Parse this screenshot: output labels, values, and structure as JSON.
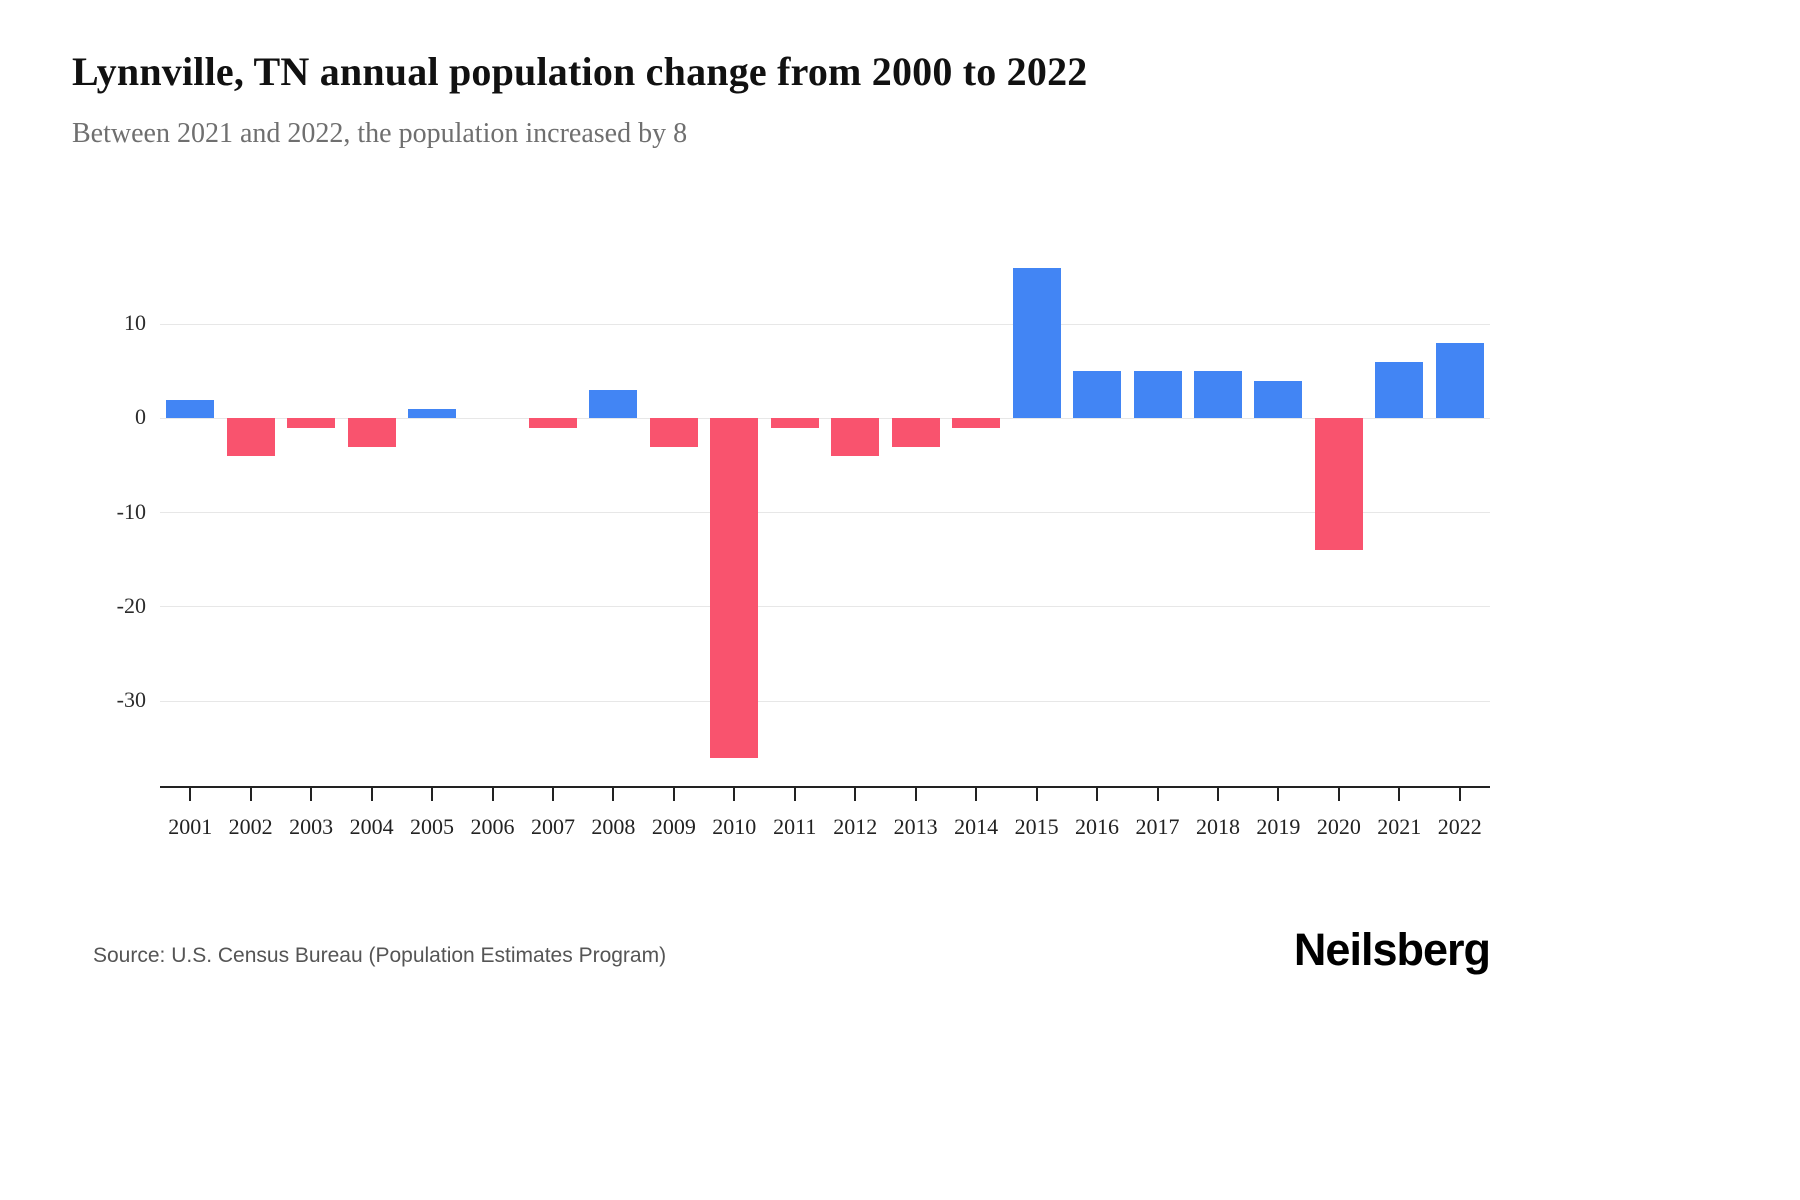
{
  "header": {
    "title": "Lynnville, TN annual population change from 2000 to 2022",
    "subtitle": "Between 2021 and 2022, the population increased by 8"
  },
  "chart_data": {
    "type": "bar",
    "title": "Lynnville, TN annual population change from 2000 to 2022",
    "categories": [
      "2001",
      "2002",
      "2003",
      "2004",
      "2005",
      "2006",
      "2007",
      "2008",
      "2009",
      "2010",
      "2011",
      "2012",
      "2013",
      "2014",
      "2015",
      "2016",
      "2017",
      "2018",
      "2019",
      "2020",
      "2021",
      "2022"
    ],
    "values": [
      2,
      -4,
      -1,
      -3,
      1,
      0,
      -1,
      3,
      -3,
      -36,
      -1,
      -4,
      -3,
      -1,
      16,
      5,
      5,
      5,
      4,
      -14,
      6,
      8
    ],
    "xlabel": "",
    "ylabel": "",
    "ylim": [
      -39,
      20
    ],
    "yticks": [
      10,
      0,
      -10,
      -20,
      -30
    ],
    "grid": true,
    "legend": "none",
    "positive_color": "#4285F4",
    "negative_color": "#F9536E"
  },
  "footer": {
    "source": "Source: U.S. Census Bureau (Population Estimates Program)",
    "logo": "Neilsberg"
  }
}
